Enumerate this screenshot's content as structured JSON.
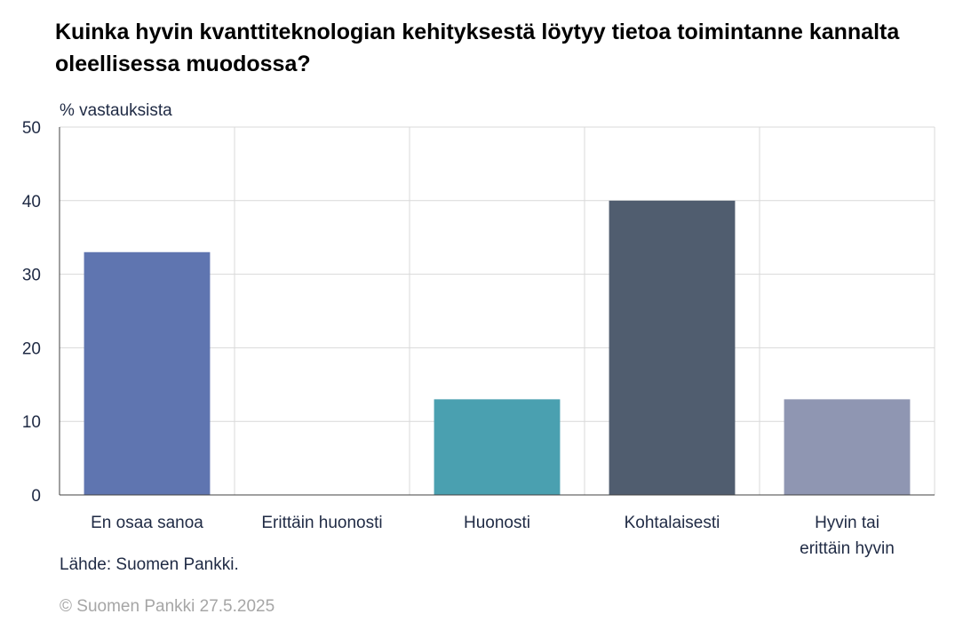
{
  "title": "Kuinka hyvin kvanttiteknologian kehityksestä löytyy tietoa toimintanne kannalta oleellisessa muodossa?",
  "unit_label": "% vastauksista",
  "source": "Lähde: Suomen Pankki.",
  "copyright": "© Suomen Pankki 27.5.2025",
  "chart_data": {
    "type": "bar",
    "title": "Kuinka hyvin kvanttiteknologian kehityksestä löytyy tietoa toimintanne kannalta oleellisessa muodossa?",
    "ylabel": "% vastauksista",
    "xlabel": "",
    "categories": [
      [
        "En osaa sanoa"
      ],
      [
        "Erittäin huonosti"
      ],
      [
        "Huonosti"
      ],
      [
        "Kohtalaisesti"
      ],
      [
        "Hyvin tai",
        "erittäin hyvin"
      ]
    ],
    "values": [
      33,
      0,
      13,
      40,
      13
    ],
    "colors": [
      "#5f75b0",
      "#5f75b0",
      "#4aa0b0",
      "#505d6f",
      "#8f96b2"
    ],
    "ylim": [
      0,
      50
    ],
    "yticks": [
      0,
      10,
      20,
      30,
      40,
      50
    ],
    "grid": true,
    "legend": "none"
  }
}
